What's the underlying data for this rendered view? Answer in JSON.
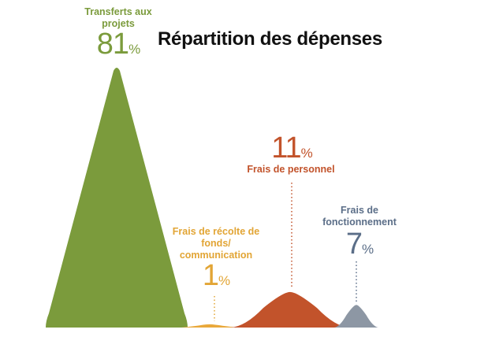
{
  "chart_data": {
    "type": "mountain",
    "title": "Répartition des dépenses",
    "categories": [
      "Transferts aux projets",
      "Frais de récolte de fonds/ communication",
      "Frais de personnel",
      "Frais de fonctionnement"
    ],
    "values": [
      81,
      1,
      11,
      7
    ],
    "value_labels": [
      "81%",
      "1%",
      "11%",
      "7%"
    ],
    "colors": [
      "#7b9b3c",
      "#e9a83a",
      "#c2532b",
      "#8d97a4"
    ],
    "label_colors": [
      "#7b9b3c",
      "#e2a535",
      "#c2532b",
      "#5b6e88"
    ]
  }
}
